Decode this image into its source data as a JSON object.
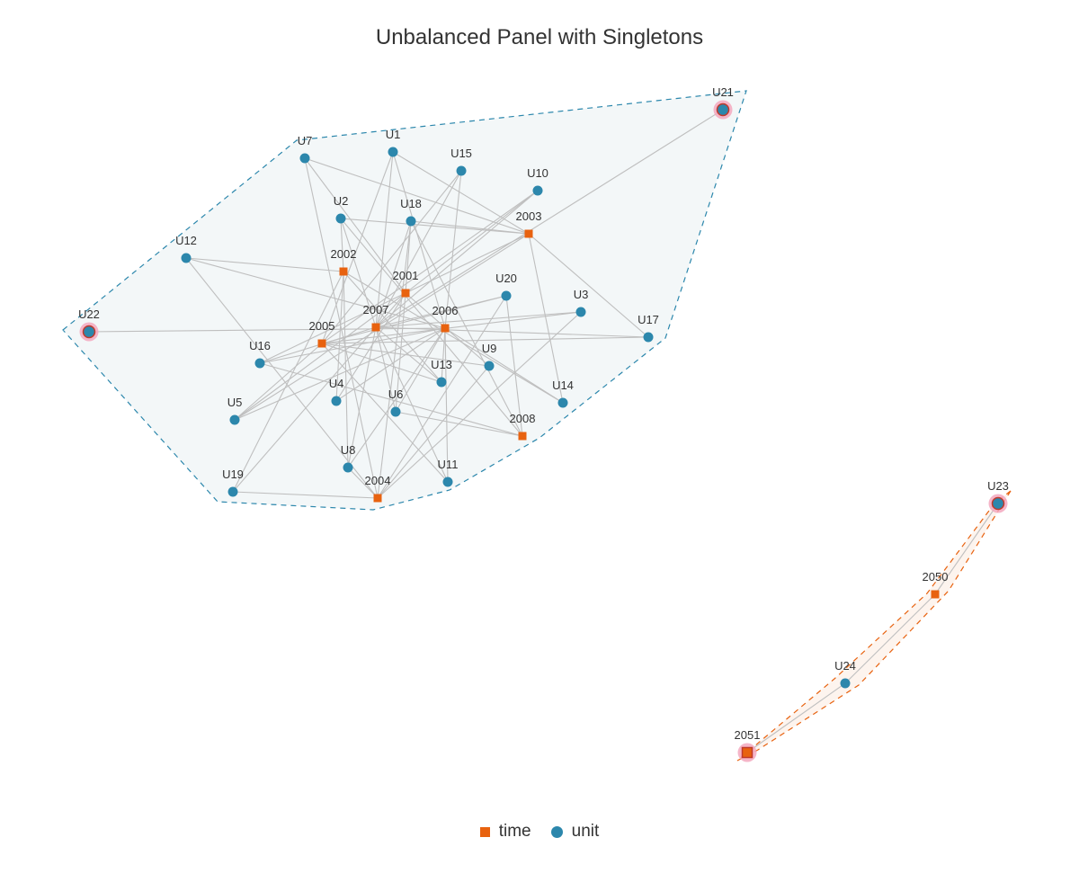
{
  "title": "Unbalanced Panel with Singletons",
  "legend": [
    {
      "label": "time",
      "shape": "square",
      "color": "#E8620F"
    },
    {
      "label": "unit",
      "shape": "circle",
      "color": "#2C87AC"
    }
  ],
  "colors": {
    "time": "#E8620F",
    "unit": "#2C87AC",
    "edge": "#BFBFBF",
    "highlight": "#F3A8BE",
    "hull_main_fill": "#F3F7F8",
    "hull_main_stroke": "#2C87AC",
    "hull_small_fill": "#FDF4EE",
    "hull_small_stroke": "#E8620F"
  },
  "nodes": [
    {
      "id": "U1",
      "type": "unit"
    },
    {
      "id": "U2",
      "type": "unit"
    },
    {
      "id": "U3",
      "type": "unit"
    },
    {
      "id": "U4",
      "type": "unit"
    },
    {
      "id": "U5",
      "type": "unit"
    },
    {
      "id": "U6",
      "type": "unit"
    },
    {
      "id": "U7",
      "type": "unit"
    },
    {
      "id": "U8",
      "type": "unit"
    },
    {
      "id": "U9",
      "type": "unit"
    },
    {
      "id": "U10",
      "type": "unit"
    },
    {
      "id": "U11",
      "type": "unit"
    },
    {
      "id": "U12",
      "type": "unit"
    },
    {
      "id": "U13",
      "type": "unit"
    },
    {
      "id": "U14",
      "type": "unit"
    },
    {
      "id": "U15",
      "type": "unit"
    },
    {
      "id": "U16",
      "type": "unit"
    },
    {
      "id": "U17",
      "type": "unit"
    },
    {
      "id": "U18",
      "type": "unit"
    },
    {
      "id": "U19",
      "type": "unit"
    },
    {
      "id": "U20",
      "type": "unit"
    },
    {
      "id": "U21",
      "type": "unit",
      "highlight": true
    },
    {
      "id": "U22",
      "type": "unit",
      "highlight": true
    },
    {
      "id": "U23",
      "type": "unit",
      "highlight": true
    },
    {
      "id": "U24",
      "type": "unit"
    },
    {
      "id": "2001",
      "type": "time"
    },
    {
      "id": "2002",
      "type": "time"
    },
    {
      "id": "2003",
      "type": "time"
    },
    {
      "id": "2004",
      "type": "time"
    },
    {
      "id": "2005",
      "type": "time"
    },
    {
      "id": "2006",
      "type": "time"
    },
    {
      "id": "2007",
      "type": "time"
    },
    {
      "id": "2008",
      "type": "time"
    },
    {
      "id": "2050",
      "type": "time"
    },
    {
      "id": "2051",
      "type": "time",
      "highlight": true
    }
  ],
  "edges": [
    [
      "U1",
      "2003"
    ],
    [
      "U1",
      "2007"
    ],
    [
      "U1",
      "2006"
    ],
    [
      "U1",
      "2005"
    ],
    [
      "U2",
      "2003"
    ],
    [
      "U2",
      "2002"
    ],
    [
      "U2",
      "2008"
    ],
    [
      "U2",
      "2007"
    ],
    [
      "U3",
      "2007"
    ],
    [
      "U3",
      "2004"
    ],
    [
      "U3",
      "2005"
    ],
    [
      "U4",
      "2001"
    ],
    [
      "U4",
      "2002"
    ],
    [
      "U4",
      "2006"
    ],
    [
      "U5",
      "2005"
    ],
    [
      "U5",
      "2006"
    ],
    [
      "U5",
      "2001"
    ],
    [
      "U5",
      "2003"
    ],
    [
      "U6",
      "2001"
    ],
    [
      "U6",
      "2008"
    ],
    [
      "U6",
      "2007"
    ],
    [
      "U6",
      "2006"
    ],
    [
      "U7",
      "2003"
    ],
    [
      "U7",
      "2004"
    ],
    [
      "U7",
      "2001"
    ],
    [
      "U8",
      "2006"
    ],
    [
      "U8",
      "2002"
    ],
    [
      "U8",
      "2004"
    ],
    [
      "U8",
      "2007"
    ],
    [
      "U9",
      "2005"
    ],
    [
      "U9",
      "2001"
    ],
    [
      "U9",
      "2004"
    ],
    [
      "U10",
      "2005"
    ],
    [
      "U10",
      "2007"
    ],
    [
      "U10",
      "2001"
    ],
    [
      "U11",
      "2006"
    ],
    [
      "U11",
      "2007"
    ],
    [
      "U11",
      "2005"
    ],
    [
      "U12",
      "2002"
    ],
    [
      "U12",
      "2006"
    ],
    [
      "U12",
      "2004"
    ],
    [
      "U13",
      "2002"
    ],
    [
      "U13",
      "2006"
    ],
    [
      "U13",
      "2007"
    ],
    [
      "U13",
      "2005"
    ],
    [
      "U14",
      "2003"
    ],
    [
      "U14",
      "2006"
    ],
    [
      "U14",
      "2002"
    ],
    [
      "U15",
      "2006"
    ],
    [
      "U15",
      "2005"
    ],
    [
      "U15",
      "2007"
    ],
    [
      "U16",
      "2003"
    ],
    [
      "U16",
      "2008"
    ],
    [
      "U16",
      "2007"
    ],
    [
      "U16",
      "2006"
    ],
    [
      "U17",
      "2007"
    ],
    [
      "U17",
      "2003"
    ],
    [
      "U17",
      "2005"
    ],
    [
      "U18",
      "2007"
    ],
    [
      "U18",
      "2008"
    ],
    [
      "U18",
      "2003"
    ],
    [
      "U18",
      "2001"
    ],
    [
      "U18",
      "2004"
    ],
    [
      "U19",
      "2004"
    ],
    [
      "U19",
      "2001"
    ],
    [
      "U19",
      "2002"
    ],
    [
      "U20",
      "2005"
    ],
    [
      "U20",
      "2008"
    ],
    [
      "U20",
      "2007"
    ],
    [
      "U20",
      "2004"
    ],
    [
      "U21",
      "2007"
    ],
    [
      "U22",
      "2006"
    ],
    [
      "U23",
      "2050"
    ],
    [
      "U24",
      "2051"
    ],
    [
      "U24",
      "2050"
    ]
  ],
  "groups": [
    {
      "name": "main",
      "style": "main"
    },
    {
      "name": "small",
      "style": "small"
    }
  ]
}
